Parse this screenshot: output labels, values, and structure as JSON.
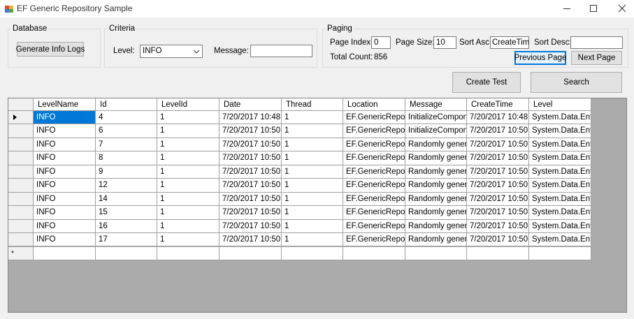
{
  "window": {
    "title": "EF Generic Repository Sample"
  },
  "database": {
    "title": "Database",
    "generate_button": "Generate Info Logs"
  },
  "criteria": {
    "title": "Criteria",
    "level_label": "Level:",
    "level_value": "INFO",
    "message_label": "Message:"
  },
  "paging": {
    "title": "Paging",
    "page_index_label": "Page Index:",
    "page_index": 0,
    "page_size_label": "Page Size:",
    "page_size": 10,
    "sort_asc_label": "Sort Asc:",
    "sort_asc": "CreateTime",
    "sort_desc_label": "Sort Desc:",
    "total_count_label": "Total Count:",
    "total_count": 856,
    "previous_button": "Previous Page",
    "next_button": "Next Page"
  },
  "actions": {
    "create_test": "Create Test",
    "search": "Search"
  },
  "table": {
    "columns": [
      "LevelName",
      "Id",
      "LevelId",
      "Date",
      "Thread",
      "Location",
      "Message",
      "CreateTime",
      "Level"
    ],
    "rows": [
      [
        "INFO",
        4,
        1,
        "7/20/2017 10:48...",
        1,
        "EF.GenericRepo...",
        "InitializeCompone...",
        "7/20/2017 10:48...",
        "System.Data.Enti..."
      ],
      [
        "INFO",
        6,
        1,
        "7/20/2017 10:50...",
        1,
        "EF.GenericRepo...",
        "InitializeCompone...",
        "7/20/2017 10:50...",
        "System.Data.Enti..."
      ],
      [
        "INFO",
        7,
        1,
        "7/20/2017 10:50...",
        1,
        "EF.GenericRepo...",
        "Randomly genera...",
        "7/20/2017 10:50...",
        "System.Data.Enti..."
      ],
      [
        "INFO",
        8,
        1,
        "7/20/2017 10:50...",
        1,
        "EF.GenericRepo...",
        "Randomly genera...",
        "7/20/2017 10:50...",
        "System.Data.Enti..."
      ],
      [
        "INFO",
        9,
        1,
        "7/20/2017 10:50...",
        1,
        "EF.GenericRepo...",
        "Randomly genera...",
        "7/20/2017 10:50...",
        "System.Data.Enti..."
      ],
      [
        "INFO",
        12,
        1,
        "7/20/2017 10:50...",
        1,
        "EF.GenericRepo...",
        "Randomly genera...",
        "7/20/2017 10:50...",
        "System.Data.Enti..."
      ],
      [
        "INFO",
        14,
        1,
        "7/20/2017 10:50...",
        1,
        "EF.GenericRepo...",
        "Randomly genera...",
        "7/20/2017 10:50...",
        "System.Data.Enti..."
      ],
      [
        "INFO",
        15,
        1,
        "7/20/2017 10:50...",
        1,
        "EF.GenericRepo...",
        "Randomly genera...",
        "7/20/2017 10:50...",
        "System.Data.Enti..."
      ],
      [
        "INFO",
        16,
        1,
        "7/20/2017 10:50...",
        1,
        "EF.GenericRepo...",
        "Randomly genera...",
        "7/20/2017 10:50...",
        "System.Data.Enti..."
      ],
      [
        "INFO",
        17,
        1,
        "7/20/2017 10:50...",
        1,
        "EF.GenericRepo...",
        "Randomly genera...",
        "7/20/2017 10:50...",
        "System.Data.Enti..."
      ]
    ],
    "new_row_marker": "*"
  }
}
